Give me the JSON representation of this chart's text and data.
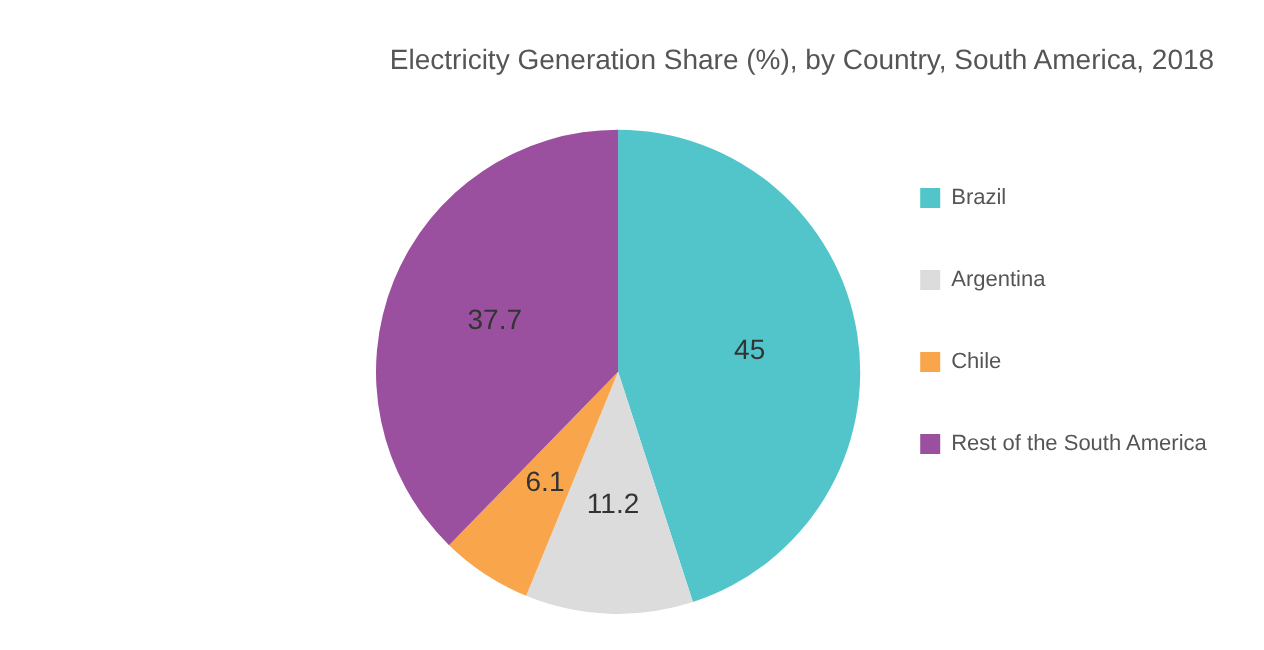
{
  "chart_data": {
    "type": "pie",
    "title": "Electricity Generation Share (%), by Country, South America, 2018",
    "categories": [
      "Brazil",
      "Argentina",
      "Chile",
      "Rest of the South America"
    ],
    "values": [
      45,
      11.2,
      6.1,
      37.7
    ],
    "colors": [
      "#52c5cb",
      "#dcdcdc",
      "#f9a54c",
      "#9b509f"
    ],
    "legend": "right",
    "data_labels": true
  }
}
